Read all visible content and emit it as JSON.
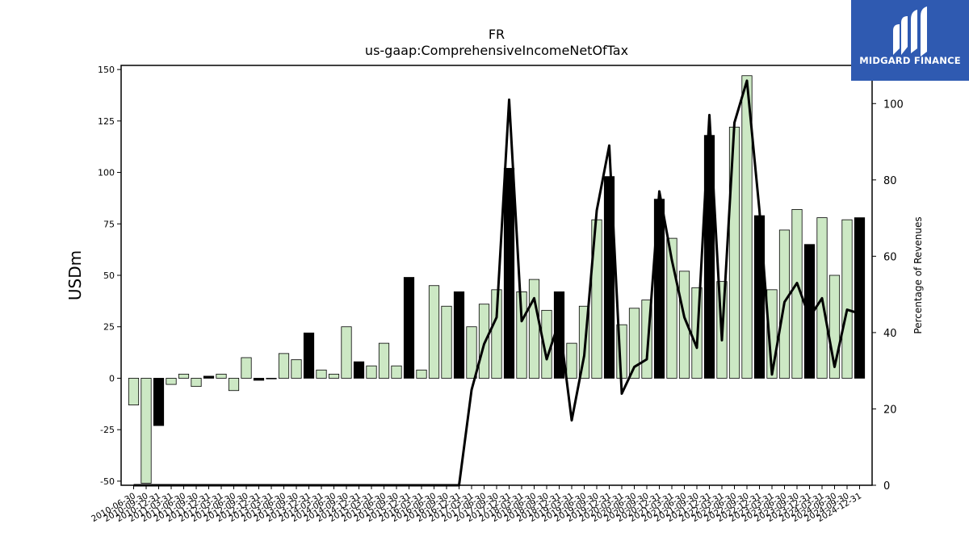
{
  "logo": {
    "text": "MIDGARD FINANCE",
    "background": "#2f5ab1"
  },
  "chart_data": {
    "type": "bar",
    "title": "FR",
    "subtitle": "us-gaap:ComprehensiveIncomeNetOfTax",
    "ylabel": "USDm",
    "y2label": "Percentage of Revenues",
    "ylim": [
      -52,
      152
    ],
    "y2lim": [
      0,
      110
    ],
    "yticks": [
      -50,
      -25,
      0,
      25,
      50,
      75,
      100,
      125,
      150
    ],
    "y2ticks": [
      0,
      20,
      40,
      60,
      80,
      100
    ],
    "grid": false,
    "colors": {
      "quarter": "#cce8c4",
      "annual": "#000000",
      "line": "#000000"
    },
    "categories": [
      "2010-06-30",
      "2010-09-30",
      "2010-12-31",
      "2011-03-31",
      "2011-06-30",
      "2011-09-30",
      "2011-12-31",
      "2012-03-31",
      "2012-06-30",
      "2012-09-30",
      "2012-12-31",
      "2013-03-31",
      "2013-06-30",
      "2013-09-30",
      "2013-12-31",
      "2014-03-31",
      "2014-06-30",
      "2014-09-30",
      "2014-12-31",
      "2015-03-31",
      "2015-06-30",
      "2015-09-30",
      "2015-12-31",
      "2016-03-31",
      "2016-06-30",
      "2016-09-30",
      "2016-12-31",
      "2017-03-31",
      "2017-06-30",
      "2017-09-30",
      "2017-12-31",
      "2018-03-31",
      "2018-06-30",
      "2018-09-30",
      "2018-12-31",
      "2019-03-31",
      "2019-06-30",
      "2019-09-30",
      "2019-12-31",
      "2020-03-31",
      "2020-06-30",
      "2020-09-30",
      "2020-12-31",
      "2021-03-31",
      "2021-06-30",
      "2021-09-30",
      "2021-12-31",
      "2022-03-31",
      "2022-06-30",
      "2022-09-30",
      "2022-12-31",
      "2023-03-31",
      "2023-06-30",
      "2023-09-30",
      "2023-12-31",
      "2024-03-31",
      "2024-06-30",
      "2024-09-30",
      "2024-12-31"
    ],
    "series": [
      {
        "type": "bar",
        "values": [
          -13,
          -51,
          -23,
          -3,
          2,
          -4,
          1,
          2,
          -6,
          10,
          -1,
          0,
          12,
          9,
          22,
          4,
          2,
          25,
          8,
          6,
          17,
          6,
          49,
          4,
          45,
          35,
          42,
          25,
          36,
          43,
          102,
          42,
          48,
          33,
          42,
          17,
          35,
          77,
          98,
          26,
          34,
          38,
          87,
          68,
          52,
          44,
          118,
          47,
          122,
          147,
          79,
          43,
          72,
          82,
          65,
          78,
          50,
          77,
          78
        ],
        "annual": [
          false,
          false,
          true,
          false,
          false,
          false,
          true,
          false,
          false,
          false,
          true,
          false,
          false,
          false,
          true,
          false,
          false,
          false,
          true,
          false,
          false,
          false,
          true,
          false,
          false,
          false,
          true,
          false,
          false,
          false,
          true,
          false,
          false,
          false,
          true,
          false,
          false,
          false,
          true,
          false,
          false,
          false,
          true,
          false,
          false,
          false,
          true,
          false,
          false,
          false,
          true,
          false,
          false,
          false,
          true,
          false,
          false,
          false,
          true
        ]
      },
      {
        "type": "line",
        "axis": "right",
        "values": [
          0,
          0,
          0,
          0,
          0,
          0,
          0,
          0,
          0,
          0,
          0,
          0,
          0,
          0,
          0,
          0,
          0,
          0,
          0,
          0,
          0,
          0,
          0,
          0,
          0,
          0,
          0,
          25,
          37,
          44,
          101,
          43,
          49,
          33,
          43,
          17,
          34,
          72,
          89,
          24,
          31,
          33,
          77,
          59,
          44,
          36,
          97,
          38,
          95,
          106,
          72,
          29,
          48,
          53,
          44,
          49,
          31,
          46,
          45
        ]
      }
    ]
  }
}
